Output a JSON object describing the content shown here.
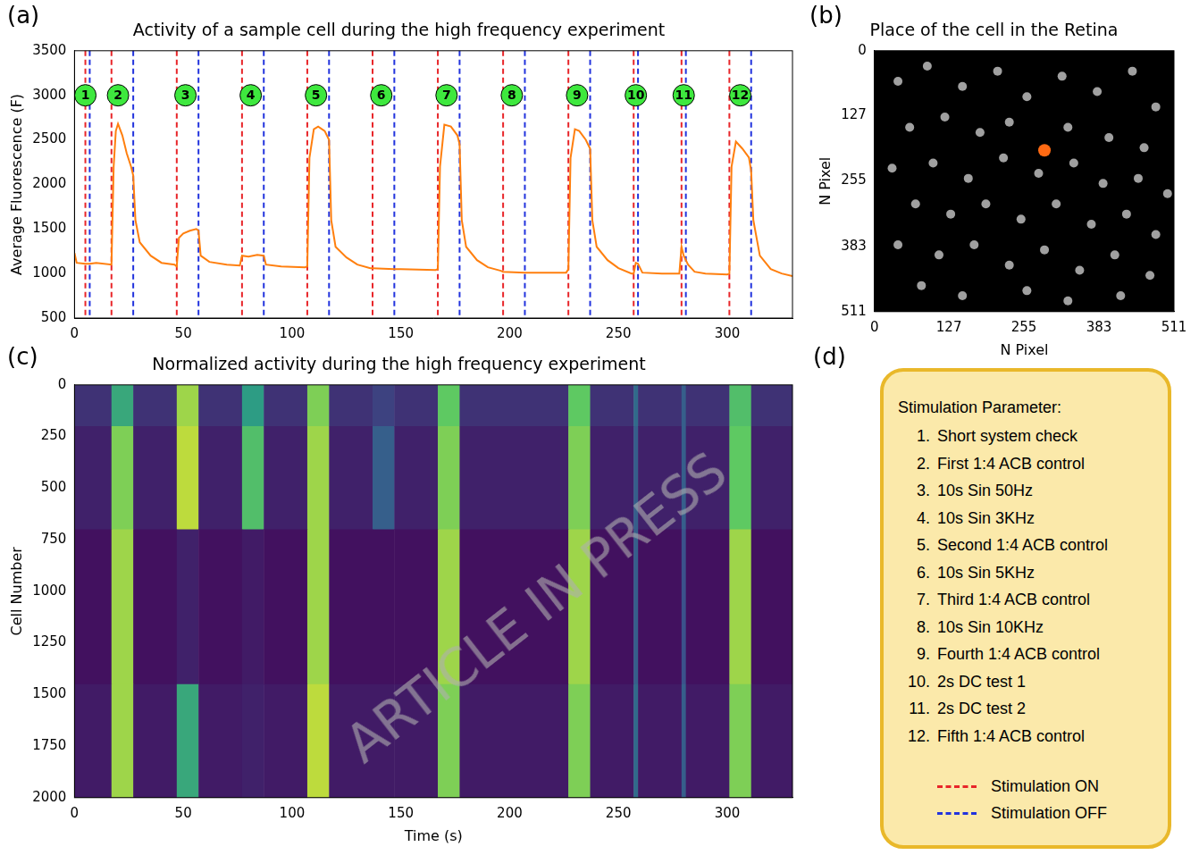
{
  "panel_labels": [
    "(a)",
    "(b)",
    "(c)",
    "(d)"
  ],
  "watermark": "ARTICLE IN PRESS",
  "chart_data": [
    {
      "type": "line",
      "title": "Activity of a sample cell during the high frequency experiment",
      "y_label": "Average Fluorescence (F)",
      "x": [
        0,
        1,
        5,
        7,
        10,
        17,
        18,
        19,
        20,
        22,
        24,
        26,
        27,
        28,
        30,
        35,
        40,
        46,
        47,
        48,
        50,
        53,
        56,
        57,
        58,
        62,
        70,
        76,
        77,
        80,
        84,
        87,
        88,
        95,
        106,
        107,
        108,
        110,
        112,
        115,
        117,
        118,
        120,
        125,
        130,
        136,
        137,
        147,
        150,
        166,
        167,
        168,
        170,
        173,
        176,
        177,
        178,
        180,
        185,
        190,
        196,
        197,
        207,
        210,
        226,
        227,
        228,
        230,
        232,
        235,
        237,
        238,
        240,
        245,
        250,
        256,
        257,
        258,
        259,
        261,
        270,
        278,
        279,
        280,
        282,
        285,
        290,
        300,
        301,
        302,
        304,
        307,
        310,
        311,
        312,
        315,
        320,
        325,
        330
      ],
      "values": [
        1230,
        1120,
        1110,
        1110,
        1120,
        1100,
        2200,
        2600,
        2680,
        2550,
        2350,
        2200,
        2100,
        1600,
        1350,
        1200,
        1120,
        1100,
        1080,
        1400,
        1450,
        1480,
        1500,
        1480,
        1200,
        1130,
        1100,
        1090,
        1200,
        1190,
        1210,
        1200,
        1100,
        1080,
        1070,
        1080,
        2300,
        2620,
        2650,
        2600,
        2500,
        1600,
        1300,
        1180,
        1100,
        1060,
        1060,
        1050,
        1050,
        1040,
        1050,
        2200,
        2670,
        2650,
        2550,
        2450,
        1600,
        1300,
        1150,
        1070,
        1030,
        1020,
        1010,
        1010,
        1010,
        1050,
        2300,
        2620,
        2600,
        2500,
        2400,
        1600,
        1300,
        1150,
        1060,
        1000,
        1000,
        1120,
        1110,
        1010,
        1000,
        1000,
        1300,
        1200,
        1100,
        1020,
        1000,
        990,
        1000,
        2200,
        2480,
        2400,
        2300,
        2150,
        1600,
        1200,
        1050,
        1000,
        970
      ],
      "color": "#ff7f0e",
      "xlim": [
        0,
        330
      ],
      "xticks": [
        0,
        50,
        100,
        150,
        200,
        250,
        300
      ],
      "ylim": [
        500,
        3500
      ],
      "yticks": [
        500,
        1000,
        1500,
        2000,
        2500,
        3000,
        3500
      ],
      "grid": false,
      "stimulation": {
        "on": [
          5,
          17,
          47,
          77,
          107,
          137,
          167,
          197,
          227,
          257,
          279,
          301
        ],
        "off": [
          7,
          27,
          57,
          87,
          117,
          147,
          177,
          207,
          237,
          259,
          281,
          311
        ],
        "on_color": "#e8262a",
        "off_color": "#2233dd"
      },
      "markers": {
        "labels": [
          1,
          2,
          3,
          4,
          5,
          6,
          7,
          8,
          9,
          10,
          11,
          12
        ],
        "x": [
          5,
          20,
          51,
          81,
          111,
          141,
          171,
          201,
          231,
          258,
          280,
          306
        ],
        "y": 3000,
        "color": "#3ee83e"
      }
    },
    {
      "type": "scatter",
      "title": "Place of the cell in the Retina",
      "x_label": "N Pixel",
      "y_label": "N Pixel",
      "xlim": [
        0,
        511
      ],
      "xticks": [
        0,
        127,
        255,
        383,
        511
      ],
      "ylim": [
        511,
        0
      ],
      "yticks": [
        0,
        127,
        255,
        383,
        511
      ],
      "grid": false,
      "cells": {
        "x": [
          40,
          90,
          150,
          210,
          260,
          320,
          380,
          440,
          480,
          60,
          120,
          180,
          230,
          330,
          400,
          460,
          30,
          100,
          160,
          220,
          280,
          340,
          390,
          450,
          500,
          70,
          130,
          190,
          250,
          310,
          370,
          430,
          480,
          40,
          110,
          170,
          230,
          290,
          350,
          410,
          470,
          80,
          150,
          260,
          330,
          420
        ],
        "y": [
          60,
          30,
          70,
          40,
          90,
          50,
          80,
          40,
          110,
          150,
          130,
          160,
          140,
          150,
          170,
          190,
          230,
          220,
          250,
          210,
          240,
          220,
          260,
          250,
          280,
          300,
          320,
          300,
          330,
          300,
          340,
          320,
          360,
          380,
          400,
          380,
          420,
          390,
          430,
          400,
          440,
          460,
          480,
          470,
          490,
          480
        ],
        "color": "#a0a0a0"
      },
      "highlight": {
        "x": 290,
        "y": 195,
        "color": "#ff6a13"
      }
    },
    {
      "type": "heatmap",
      "title": "Normalized activity during the high frequency experiment",
      "x_label": "Time (s)",
      "y_label": "Cell Number",
      "xlim": [
        0,
        330
      ],
      "xticks": [
        0,
        50,
        100,
        150,
        200,
        250,
        300
      ],
      "ylim": [
        2000,
        0
      ],
      "yticks": [
        0,
        250,
        500,
        750,
        1000,
        1250,
        1500,
        1750,
        2000
      ],
      "grid": false,
      "x_bins": [
        0,
        17,
        27,
        47,
        57,
        77,
        87,
        107,
        117,
        137,
        147,
        167,
        177,
        227,
        237,
        257,
        259,
        279,
        281,
        301,
        311,
        330
      ],
      "y_bins": [
        0,
        200,
        700,
        1450,
        2000
      ],
      "cells": [
        [
          0.15,
          0.6,
          0.15,
          0.85,
          0.15,
          0.55,
          0.15,
          0.8,
          0.15,
          0.2,
          0.15,
          0.75,
          0.15,
          0.75,
          0.15,
          0.35,
          0.15,
          0.3,
          0.15,
          0.7,
          0.15
        ],
        [
          0.1,
          0.8,
          0.1,
          0.9,
          0.1,
          0.7,
          0.1,
          0.85,
          0.1,
          0.3,
          0.1,
          0.8,
          0.1,
          0.8,
          0.1,
          0.3,
          0.1,
          0.3,
          0.1,
          0.75,
          0.1
        ],
        [
          0.05,
          0.85,
          0.05,
          0.1,
          0.05,
          0.08,
          0.05,
          0.85,
          0.05,
          0.05,
          0.05,
          0.85,
          0.05,
          0.85,
          0.05,
          0.3,
          0.05,
          0.25,
          0.05,
          0.85,
          0.05
        ],
        [
          0.08,
          0.85,
          0.08,
          0.6,
          0.08,
          0.1,
          0.08,
          0.9,
          0.08,
          0.08,
          0.08,
          0.8,
          0.08,
          0.8,
          0.08,
          0.35,
          0.08,
          0.3,
          0.08,
          0.8,
          0.08
        ]
      ],
      "vlim": [
        0,
        1
      ]
    }
  ],
  "stimulation_box": {
    "title": "Stimulation Parameter:",
    "items": [
      {
        "number": "1.",
        "text": "Short system check"
      },
      {
        "number": "2.",
        "text": "First 1:4 ACB control"
      },
      {
        "number": "3.",
        "text": "10s Sin 50Hz"
      },
      {
        "number": "4.",
        "text": "10s Sin 3KHz"
      },
      {
        "number": "5.",
        "text": "Second 1:4 ACB control"
      },
      {
        "number": "6.",
        "text": "10s Sin 5KHz"
      },
      {
        "number": "7.",
        "text": "Third 1:4 ACB control"
      },
      {
        "number": "8.",
        "text": "10s Sin 10KHz"
      },
      {
        "number": "9.",
        "text": "Fourth 1:4 ACB control"
      },
      {
        "number": "10.",
        "text": "2s DC test 1"
      },
      {
        "number": "11.",
        "text": "2s DC test 2"
      },
      {
        "number": "12.",
        "text": "Fifth 1:4 ACB control"
      }
    ],
    "legend": [
      {
        "name": "Stimulation ON",
        "color": "#e8262a",
        "line_style": "dashed"
      },
      {
        "name": "Stimulation OFF",
        "color": "#2233dd",
        "line_style": "dashed"
      }
    ]
  }
}
